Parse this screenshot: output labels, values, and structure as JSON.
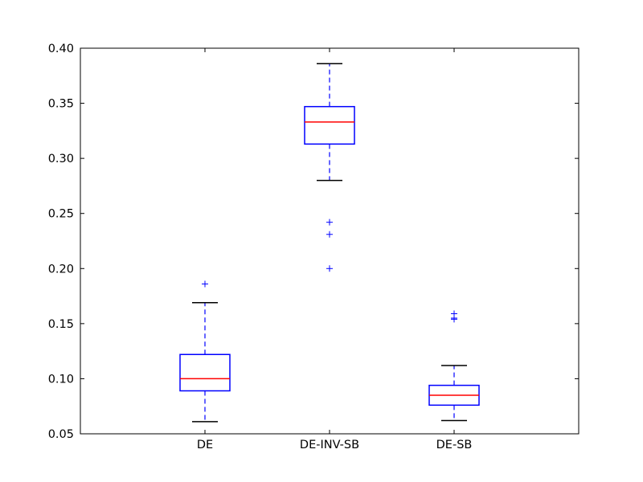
{
  "chart_data": {
    "type": "boxplot",
    "title": "",
    "xlabel": "",
    "ylabel": "",
    "ylim": [
      0.05,
      0.4
    ],
    "yticks": [
      0.05,
      0.1,
      0.15,
      0.2,
      0.25,
      0.3,
      0.35,
      0.4
    ],
    "ytick_labels": [
      "0.05",
      "0.10",
      "0.15",
      "0.20",
      "0.25",
      "0.30",
      "0.35",
      "0.40"
    ],
    "categories": [
      "DE",
      "DE-INV-SB",
      "DE-SB"
    ],
    "boxes": [
      {
        "whisker_low": 0.061,
        "q1": 0.089,
        "median": 0.1,
        "q3": 0.122,
        "whisker_high": 0.169,
        "outliers": [
          0.186
        ]
      },
      {
        "whisker_low": 0.28,
        "q1": 0.313,
        "median": 0.333,
        "q3": 0.347,
        "whisker_high": 0.386,
        "outliers": [
          0.242,
          0.231,
          0.2
        ]
      },
      {
        "whisker_low": 0.062,
        "q1": 0.076,
        "median": 0.085,
        "q3": 0.094,
        "whisker_high": 0.112,
        "outliers": [
          0.159,
          0.155,
          0.154
        ]
      }
    ],
    "colors": {
      "box": "#0000ff",
      "median": "#ff0000",
      "cap": "#000000",
      "axes": "#000000",
      "outlier": "#0000ff"
    },
    "grid": false,
    "legend": "none"
  }
}
